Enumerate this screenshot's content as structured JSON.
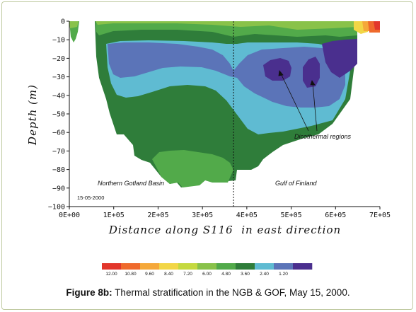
{
  "caption": {
    "label": "Figure 8b:",
    "text": "Thermal stratification in the NGB & GOF, May 15, 2000."
  },
  "chart_data": {
    "type": "heatmap",
    "xlabel": "Distance along S116  in east direction",
    "ylabel": "Depth (m)",
    "xlim": [
      0,
      700000
    ],
    "ylim": [
      -100,
      0
    ],
    "x_ticks": [
      "0E+00",
      "1E+05",
      "2E+05",
      "3E+05",
      "4E+05",
      "5E+05",
      "6E+05",
      "7E+05"
    ],
    "y_ticks": [
      "0",
      "−10",
      "−20",
      "−30",
      "−40",
      "−50",
      "−60",
      "−70",
      "−80",
      "−90",
      "−100"
    ],
    "y_values": [
      0,
      -10,
      -20,
      -30,
      -40,
      -50,
      -60,
      -70,
      -80,
      -90,
      -100
    ],
    "x_values": [
      0,
      100000,
      200000,
      300000,
      400000,
      500000,
      600000,
      700000
    ],
    "divider_x": 370000,
    "annotations": {
      "left_basin": "Northern Gotland Basin",
      "right_basin": "Gulf of Finland",
      "date": "15-05-2000",
      "regions": "Dicothermal regions"
    },
    "legend": {
      "labels": [
        "12.00",
        "10.80",
        "9.60",
        "8.40",
        "7.20",
        "6.00",
        "4.80",
        "3.60",
        "2.40",
        "1.20"
      ],
      "colors": [
        "#e2362b",
        "#ef6a2c",
        "#f5a83a",
        "#f2d646",
        "#c5d93f",
        "#89c24a",
        "#52aa4a",
        "#2f7d3a",
        "#5fbbd2",
        "#5b74b8",
        "#4a2f8e"
      ]
    },
    "colors": {
      "warm": "#e2362b",
      "orange": "#ef6a2c",
      "amber": "#f5a83a",
      "yellow": "#f2d646",
      "lime": "#c5d93f",
      "light_green": "#89c24a",
      "green": "#52aa4a",
      "dark_green": "#2f7d3a",
      "cyan": "#5fbbd2",
      "blue": "#5b74b8",
      "purple": "#4a2f8e"
    }
  }
}
